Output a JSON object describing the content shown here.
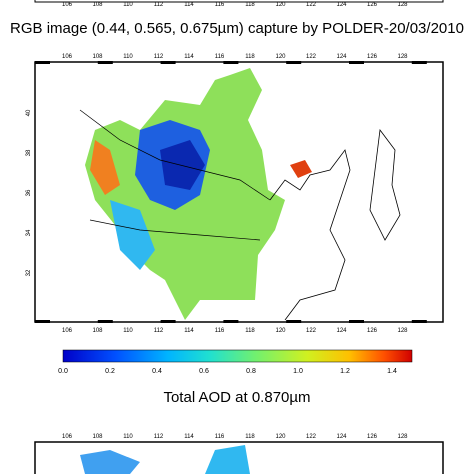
{
  "top_strip": {
    "x_labels": [
      "106",
      "108",
      "110",
      "112",
      "114",
      "116",
      "118",
      "120",
      "122",
      "124",
      "126",
      "128"
    ]
  },
  "map1": {
    "title": "RGB image (0.44, 0.565, 0.675µm) capture by POLDER-20/03/2010",
    "x_labels_top": [
      "106",
      "108",
      "110",
      "112",
      "114",
      "116",
      "118",
      "120",
      "122",
      "124",
      "126",
      "128"
    ],
    "x_labels_bottom": [
      "106",
      "108",
      "110",
      "112",
      "114",
      "116",
      "118",
      "120",
      "122",
      "124",
      "126",
      "128"
    ],
    "y_labels": [
      "40",
      "38",
      "36",
      "34",
      "32"
    ]
  },
  "colorbar": {
    "ticks": [
      "0.0",
      "0.2",
      "0.4",
      "0.6",
      "0.8",
      "1.0",
      "1.2",
      "1.4"
    ]
  },
  "map2": {
    "title": "Total AOD at 0.870µm",
    "x_labels_top": [
      "106",
      "108",
      "110",
      "112",
      "114",
      "116",
      "118",
      "120",
      "122",
      "124",
      "126",
      "128"
    ]
  }
}
